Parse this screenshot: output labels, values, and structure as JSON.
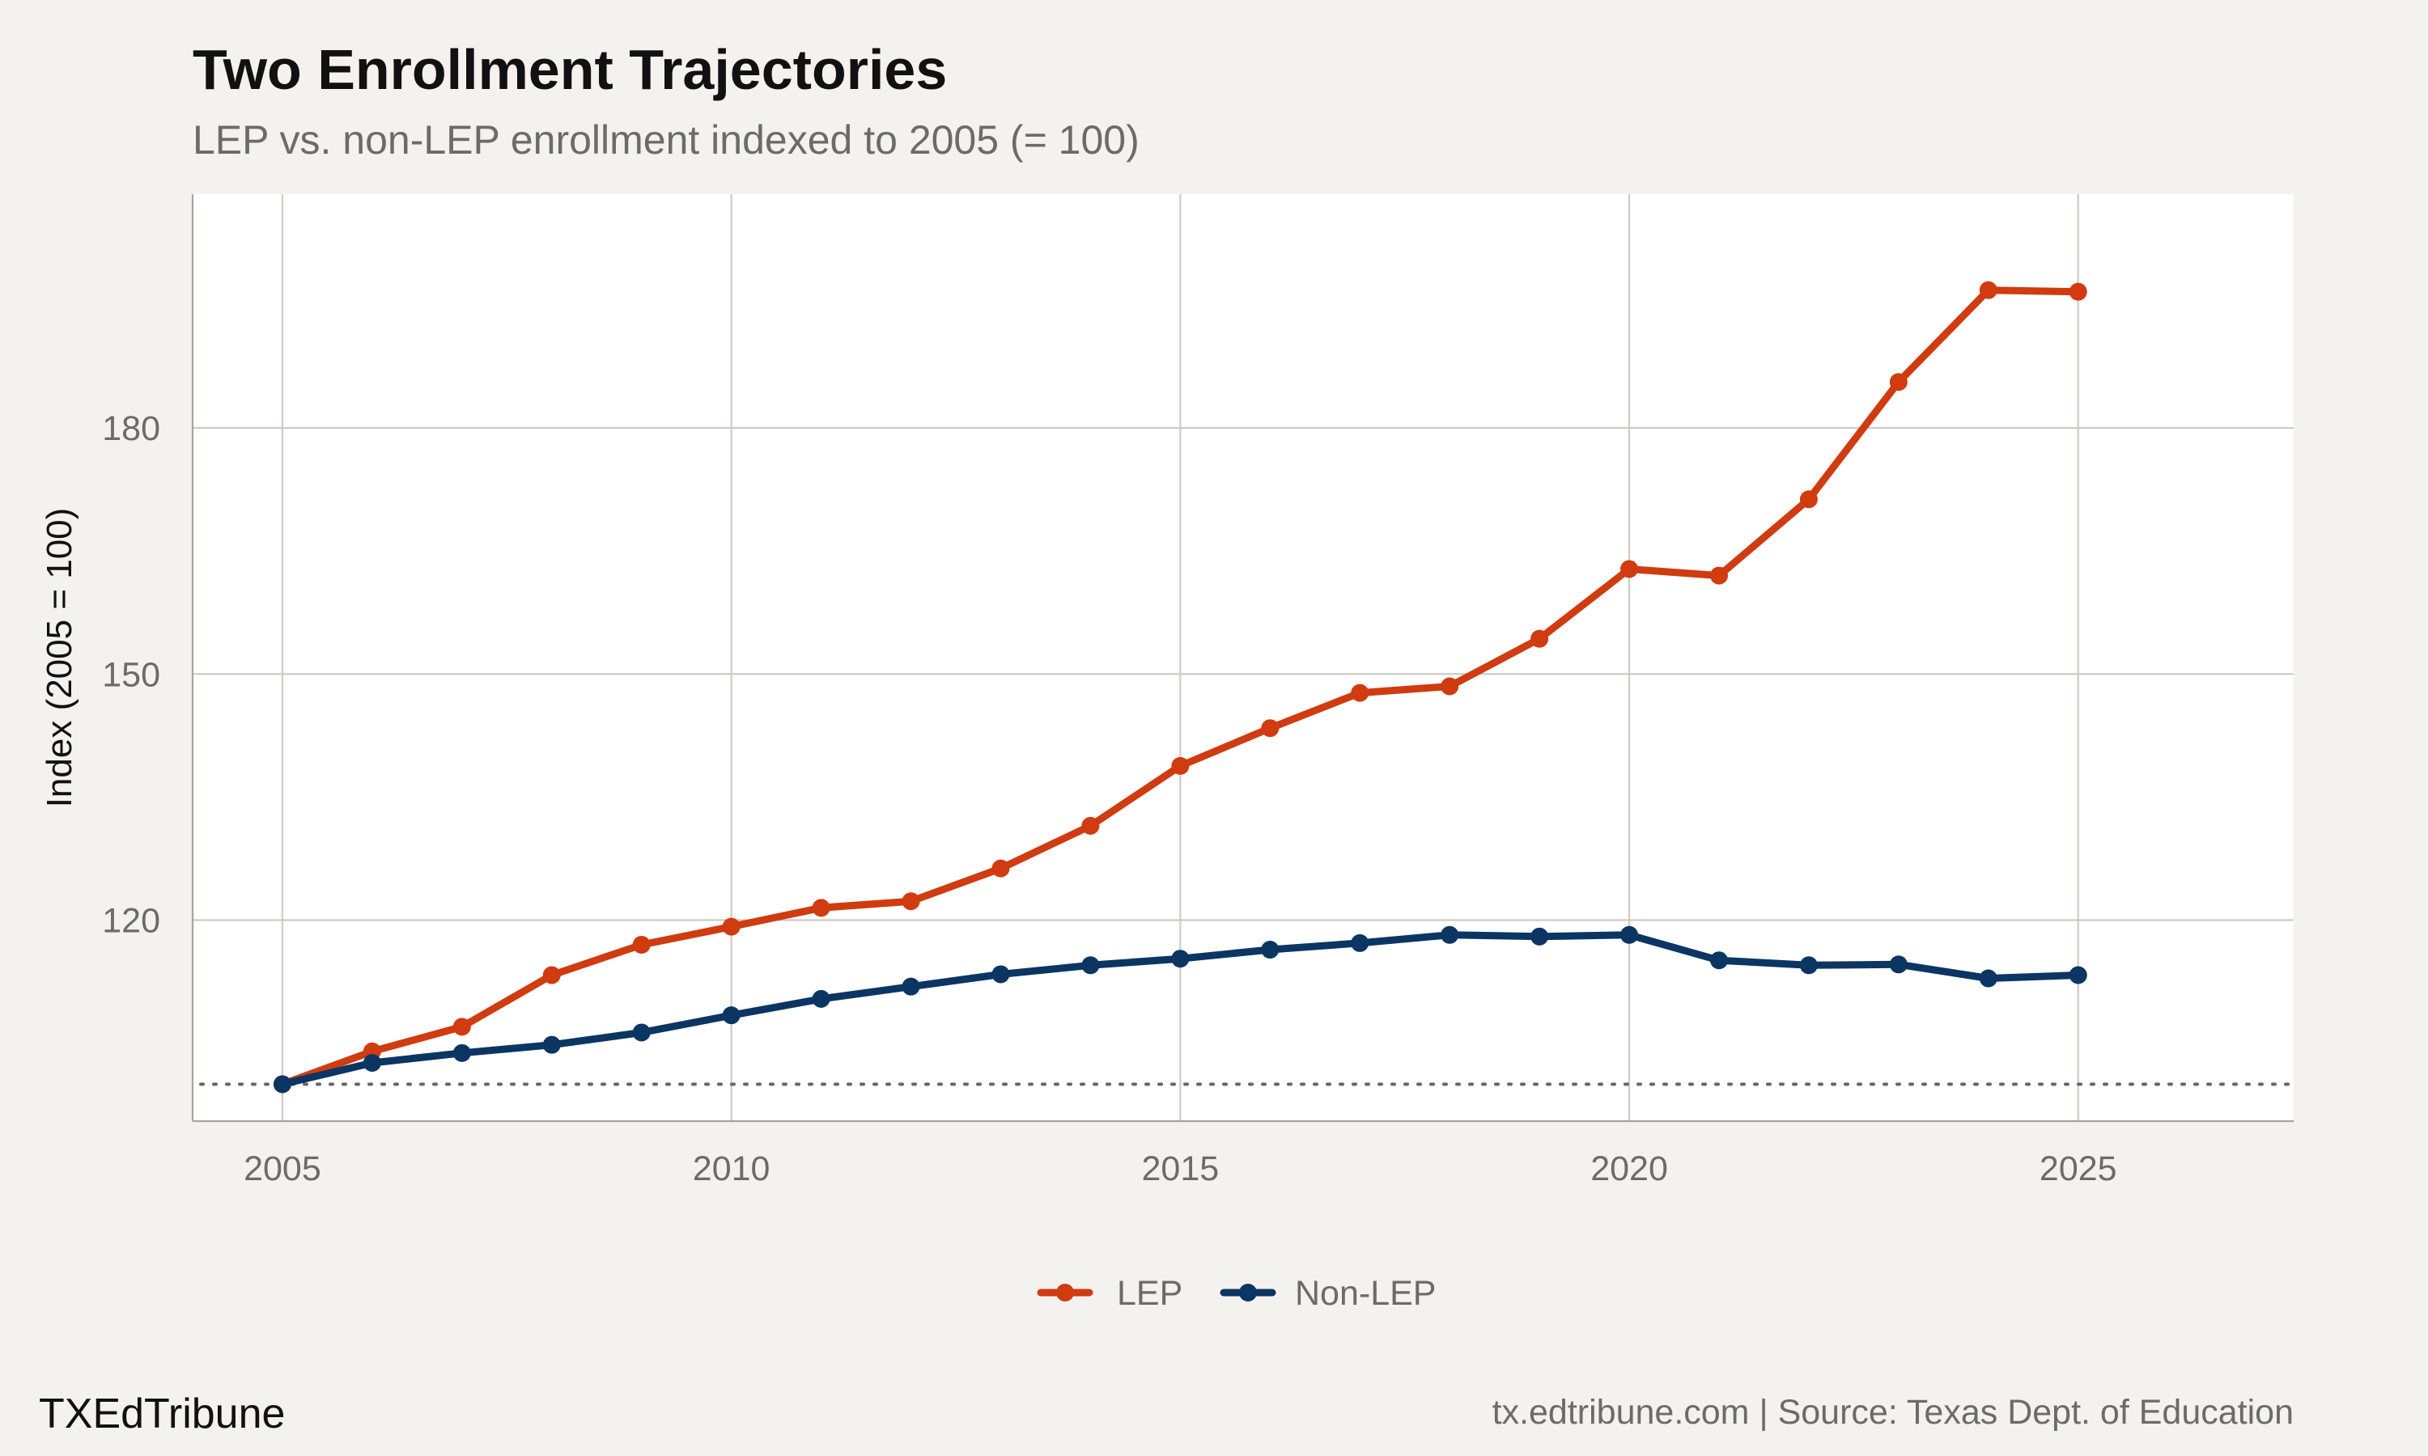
{
  "chart_data": {
    "type": "line",
    "title": "Two Enrollment Trajectories",
    "subtitle": "LEP vs. non-LEP enrollment indexed to 2005 (= 100)",
    "xlabel": "",
    "ylabel": "Index (2005 = 100)",
    "xlim": [
      2004,
      2027.4
    ],
    "ylim": [
      95.5,
      208.5
    ],
    "x_ticks": [
      2005,
      2010,
      2015,
      2020,
      2025
    ],
    "y_ticks": [
      120,
      150,
      180
    ],
    "reference_line": 100,
    "grid": true,
    "legend_position": "bottom",
    "x": [
      2005,
      2006,
      2007,
      2008,
      2009,
      2010,
      2011,
      2012,
      2013,
      2014,
      2015,
      2016,
      2017,
      2018,
      2019,
      2020,
      2021,
      2022,
      2023,
      2024,
      2025
    ],
    "series": [
      {
        "name": "LEP",
        "color": "#d03b10",
        "values": [
          100,
          104,
          107,
          113.3,
          117,
          119.2,
          121.5,
          122.3,
          126.3,
          131.5,
          138.8,
          143.4,
          147.7,
          148.5,
          154.3,
          162.8,
          162,
          171.3,
          185.6,
          196.8,
          196.6
        ]
      },
      {
        "name": "Non-LEP",
        "color": "#0b3563",
        "values": [
          100,
          102.6,
          103.8,
          104.8,
          106.3,
          108.4,
          110.4,
          111.9,
          113.4,
          114.5,
          115.3,
          116.4,
          117.2,
          118.2,
          118,
          118.2,
          115.1,
          114.5,
          114.6,
          112.9,
          113.3
        ]
      }
    ]
  },
  "footer": {
    "brand": "TXEdTribune",
    "source": "tx.edtribune.com | Source: Texas Dept. of Education"
  }
}
